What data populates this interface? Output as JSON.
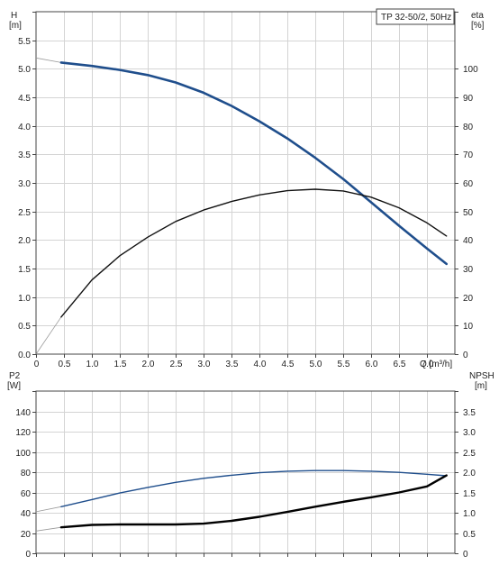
{
  "chart_data": [
    {
      "type": "line",
      "title": "TP 32-50/2, 50Hz",
      "xlabel": "Q [m³/h]",
      "ylabel_left": "H",
      "ylabel_left_unit": "[m]",
      "ylabel_right": "eta",
      "ylabel_right_unit": "[%]",
      "xlim": [
        0,
        7.5
      ],
      "ylim_left": [
        0,
        6
      ],
      "ylim_right": [
        0,
        120
      ],
      "grid": true,
      "x_ticks": [
        "0",
        "0.5",
        "1.0",
        "1.5",
        "2.0",
        "2.5",
        "3.0",
        "3.5",
        "4.0",
        "4.5",
        "5.0",
        "5.5",
        "6.0",
        "6.5",
        "7.0"
      ],
      "y_ticks_left": [
        "0.0",
        "0.5",
        "1.0",
        "1.5",
        "2.0",
        "2.5",
        "3.0",
        "3.5",
        "4.0",
        "4.5",
        "5.0",
        "5.5"
      ],
      "y_ticks_right": [
        "0",
        "10",
        "20",
        "30",
        "40",
        "50",
        "60",
        "70",
        "80",
        "90",
        "100"
      ],
      "series": [
        {
          "axis": "left",
          "color": "#1f4e8c",
          "extension": [
            [
              0,
              5.19
            ],
            [
              0.45,
              5.11
            ]
          ],
          "points": [
            [
              0.45,
              5.11
            ],
            [
              1.0,
              5.05
            ],
            [
              1.5,
              4.98
            ],
            [
              2.0,
              4.89
            ],
            [
              2.5,
              4.76
            ],
            [
              3.0,
              4.58
            ],
            [
              3.5,
              4.35
            ],
            [
              4.0,
              4.08
            ],
            [
              4.5,
              3.78
            ],
            [
              5.0,
              3.44
            ],
            [
              5.5,
              3.07
            ],
            [
              6.0,
              2.66
            ],
            [
              6.5,
              2.25
            ],
            [
              7.0,
              1.85
            ],
            [
              7.35,
              1.58
            ]
          ]
        },
        {
          "axis": "right",
          "color": "#111111",
          "extension": [
            [
              0,
              0
            ],
            [
              0.45,
              13
            ]
          ],
          "points": [
            [
              0.45,
              13
            ],
            [
              1.0,
              26
            ],
            [
              1.5,
              34.5
            ],
            [
              2.0,
              41
            ],
            [
              2.5,
              46.5
            ],
            [
              3.0,
              50.5
            ],
            [
              3.5,
              53.5
            ],
            [
              4.0,
              55.8
            ],
            [
              4.5,
              57.3
            ],
            [
              5.0,
              57.8
            ],
            [
              5.5,
              57.2
            ],
            [
              6.0,
              55
            ],
            [
              6.5,
              51.3
            ],
            [
              7.0,
              46
            ],
            [
              7.35,
              41.4
            ]
          ]
        }
      ]
    },
    {
      "type": "line",
      "xlabel": "",
      "ylabel_left": "P2",
      "ylabel_left_unit": "[W]",
      "ylabel_right": "NPSH",
      "ylabel_right_unit": "[m]",
      "xlim": [
        0,
        7.5
      ],
      "ylim_left": [
        0,
        160
      ],
      "ylim_right": [
        0,
        4
      ],
      "grid": true,
      "y_ticks_left": [
        "0",
        "20",
        "40",
        "60",
        "80",
        "100",
        "120",
        "140"
      ],
      "y_ticks_right": [
        "0",
        "0.5",
        "1.0",
        "1.5",
        "2.0",
        "2.5",
        "3.0",
        "3.5"
      ],
      "series": [
        {
          "axis": "left",
          "color": "#1f4e8c",
          "extension": [
            [
              0,
              41
            ],
            [
              0.45,
              46
            ]
          ],
          "points": [
            [
              0.45,
              46
            ],
            [
              1.0,
              53
            ],
            [
              1.5,
              59.5
            ],
            [
              2.0,
              65
            ],
            [
              2.5,
              70
            ],
            [
              3.0,
              74
            ],
            [
              3.5,
              77
            ],
            [
              4.0,
              79.5
            ],
            [
              4.5,
              81
            ],
            [
              5.0,
              81.6
            ],
            [
              5.5,
              81.6
            ],
            [
              6.0,
              81
            ],
            [
              6.5,
              79.8
            ],
            [
              7.0,
              78
            ],
            [
              7.35,
              76.4
            ]
          ]
        },
        {
          "axis": "right",
          "color": "#000000",
          "extension": [
            [
              0,
              0.55
            ],
            [
              0.45,
              0.64
            ]
          ],
          "points": [
            [
              0.45,
              0.64
            ],
            [
              1.0,
              0.7
            ],
            [
              1.5,
              0.71
            ],
            [
              2.0,
              0.71
            ],
            [
              2.5,
              0.71
            ],
            [
              3.0,
              0.73
            ],
            [
              3.5,
              0.8
            ],
            [
              4.0,
              0.9
            ],
            [
              4.5,
              1.02
            ],
            [
              5.0,
              1.15
            ],
            [
              5.5,
              1.27
            ],
            [
              6.0,
              1.38
            ],
            [
              6.5,
              1.5
            ],
            [
              7.0,
              1.65
            ],
            [
              7.35,
              1.92
            ]
          ]
        }
      ]
    }
  ]
}
